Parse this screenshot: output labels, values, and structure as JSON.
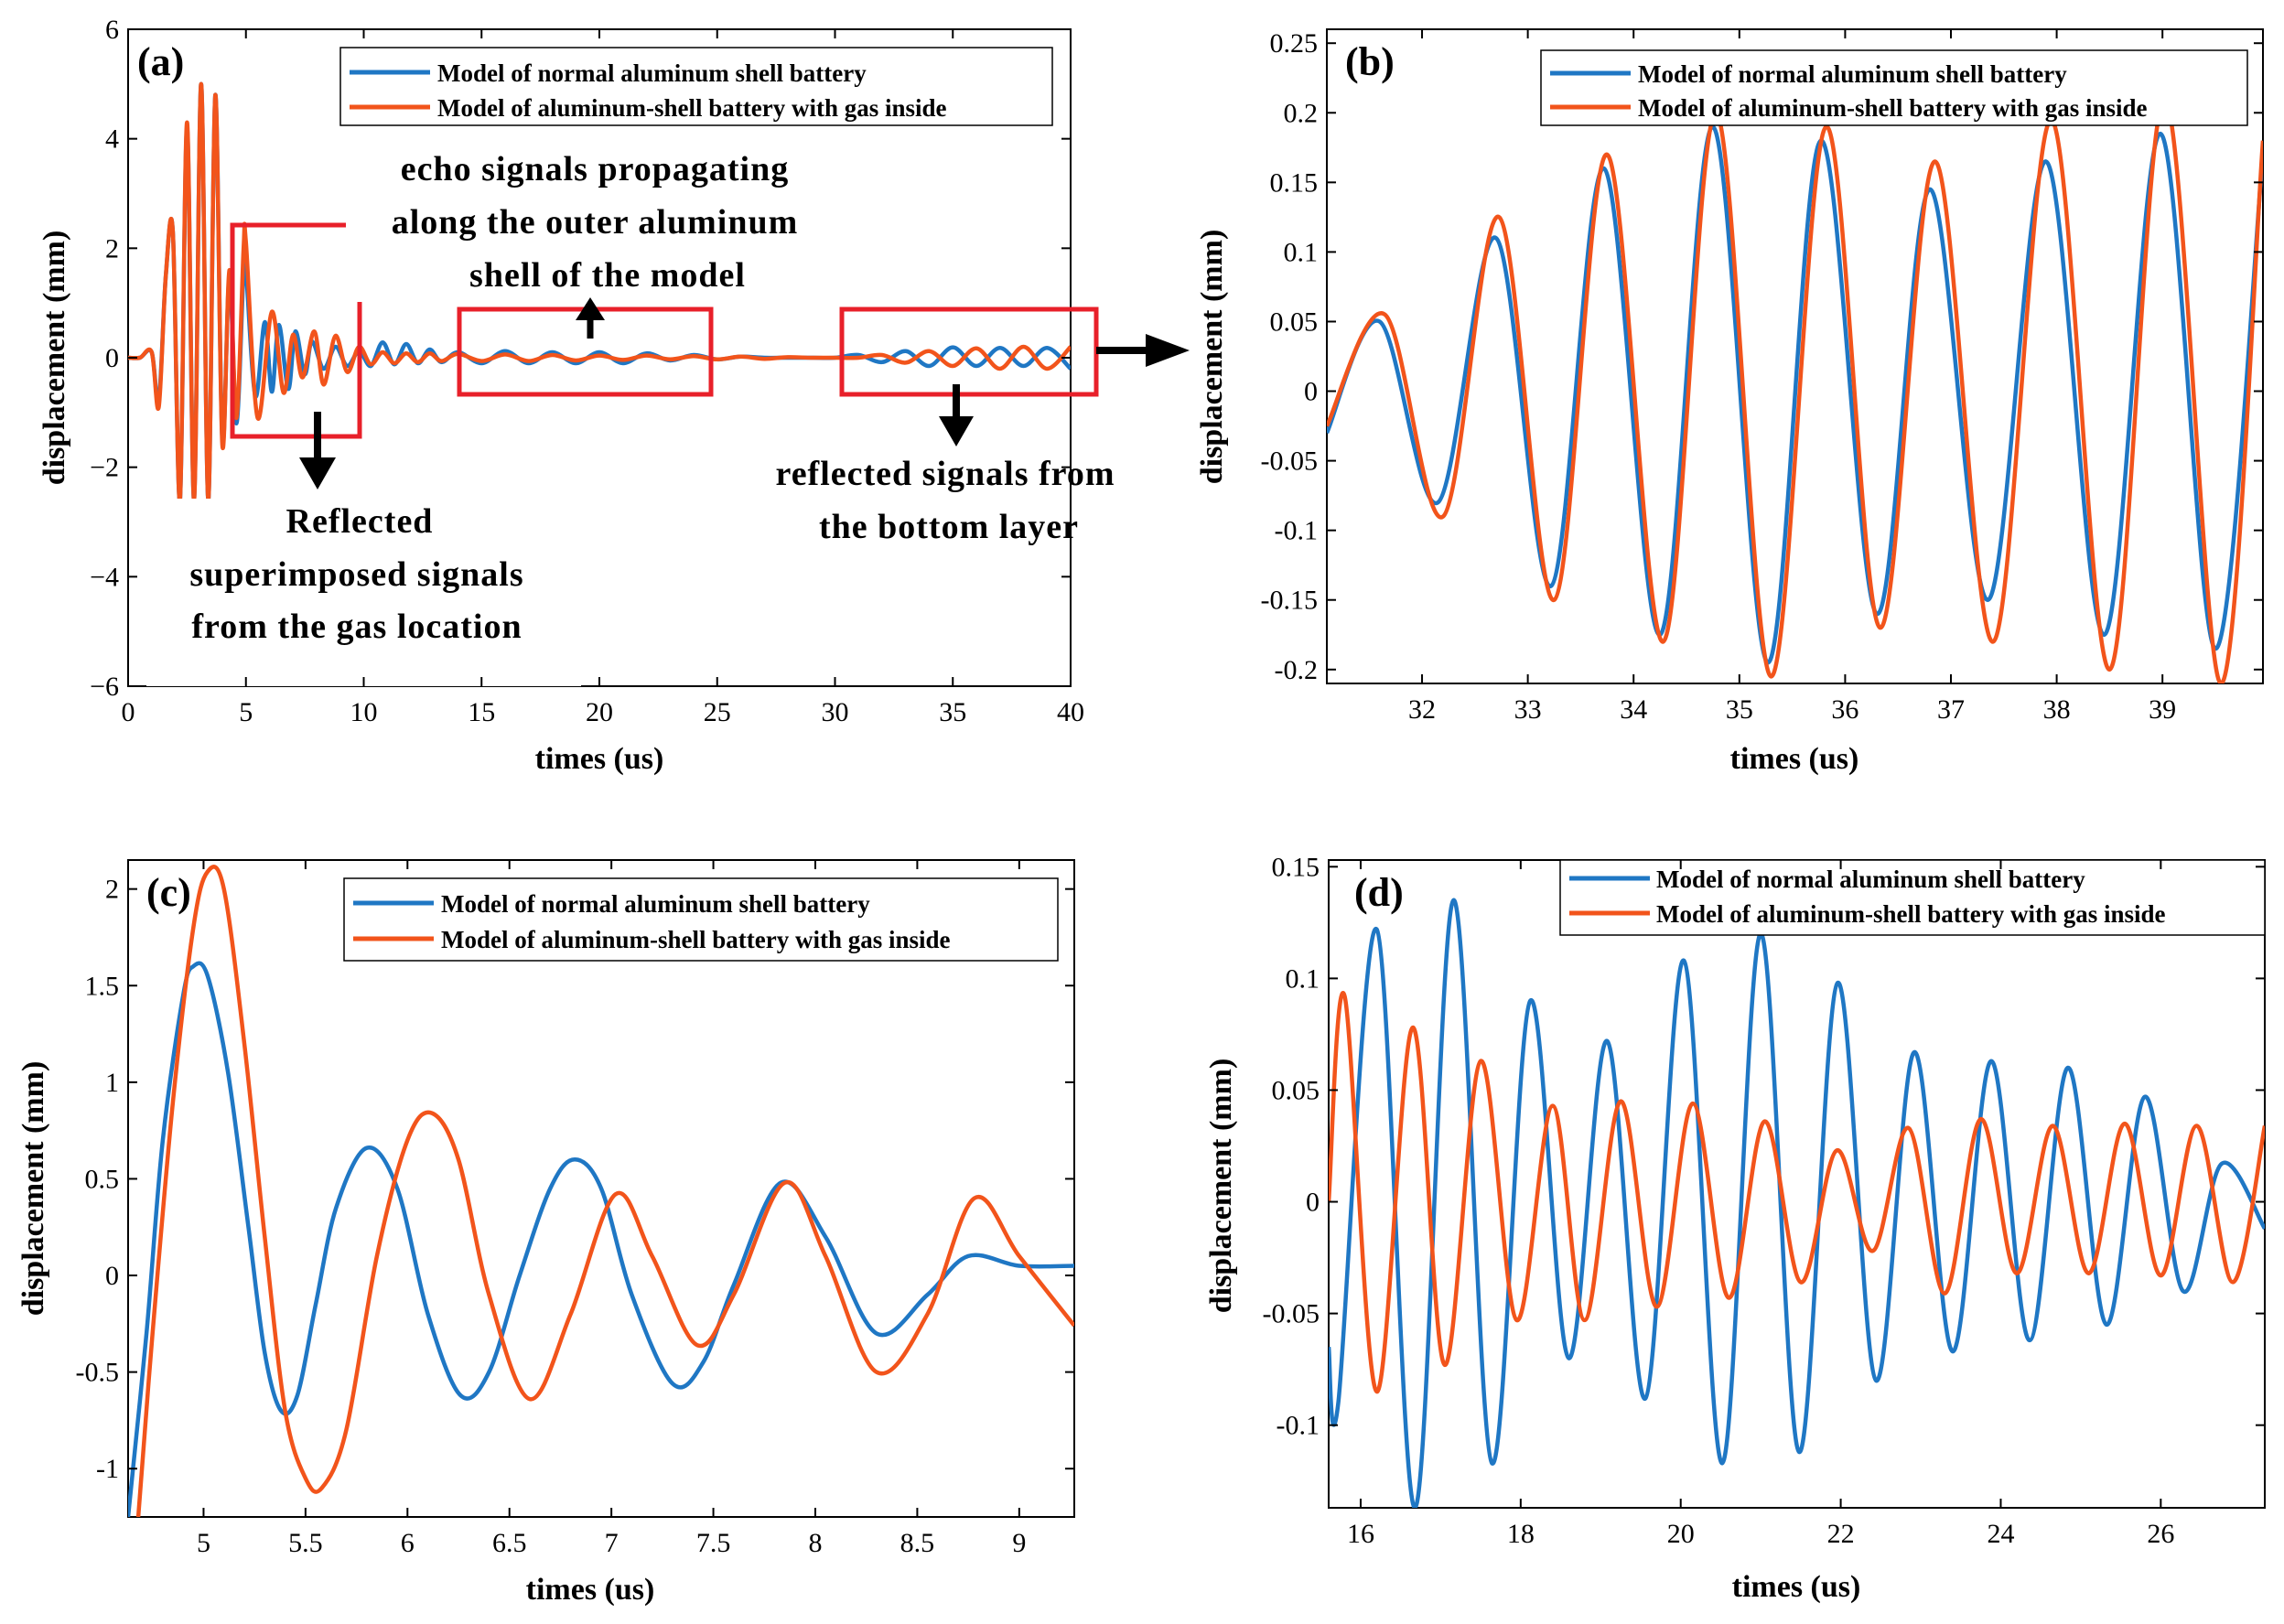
{
  "colors": {
    "normal": "#1f77c4",
    "gas": "#f2541b",
    "highlight": "#e8202a",
    "arrow": "#000000"
  },
  "legend": {
    "normal": "Model of normal aluminum shell battery",
    "gas": "Model of aluminum-shell battery with gas inside"
  },
  "annotations": {
    "echo": [
      "echo signals propagating",
      "along the outer aluminum",
      "shell of the model"
    ],
    "reflected_gas": [
      "Reflected",
      "superimposed signals",
      "from the gas location"
    ],
    "reflected_bottom": [
      "reflected signals from",
      "the bottom layer"
    ]
  },
  "chart_data": [
    {
      "id": "a",
      "panel_label": "(a)",
      "type": "line",
      "xlabel": "times (us)",
      "ylabel": "displacement (mm)",
      "xlim": [
        0,
        40
      ],
      "ylim": [
        -6,
        6
      ],
      "xticks": [
        0,
        5,
        10,
        15,
        20,
        25,
        30,
        35,
        40
      ],
      "yticks": [
        -6,
        -4,
        -2,
        0,
        2,
        4,
        6
      ],
      "tick_labels_x": [
        "0",
        "5",
        "10",
        "15",
        "20",
        "25",
        "30",
        "35",
        "40"
      ],
      "tick_labels_y": [
        "−6",
        "−4",
        "−2",
        "0",
        "2",
        "4",
        "6"
      ],
      "series": [
        {
          "name": "Model of normal aluminum shell battery",
          "key": "normal",
          "x": [
            0,
            0.5,
            1,
            1.3,
            1.6,
            1.9,
            2.2,
            2.5,
            2.8,
            3.1,
            3.4,
            3.7,
            4.0,
            4.3,
            4.6,
            4.9,
            5.0,
            5.4,
            5.8,
            6.1,
            6.4,
            6.8,
            7.1,
            7.5,
            7.8,
            8.3,
            8.8,
            9.3,
            9.8,
            10.3,
            10.8,
            11.3,
            11.8,
            12.3,
            12.8,
            13.3,
            14,
            15,
            16,
            17,
            18,
            19,
            20,
            21,
            22,
            23,
            24,
            25,
            26,
            27,
            28,
            29,
            30,
            31,
            32,
            33,
            34,
            35,
            36,
            37,
            38,
            39,
            40
          ],
          "y": [
            0,
            0,
            0.1,
            -0.8,
            1.5,
            2.3,
            -2.6,
            4.2,
            -2.6,
            5.0,
            -2.6,
            4.8,
            -1.5,
            1.5,
            -1.2,
            1.6,
            1.6,
            -0.7,
            0.65,
            -0.62,
            0.6,
            -0.57,
            0.48,
            -0.3,
            0.3,
            -0.2,
            0.2,
            -0.15,
            0.12,
            -0.15,
            0.28,
            -0.12,
            0.25,
            -0.1,
            0.15,
            -0.08,
            0.1,
            -0.1,
            0.12,
            -0.1,
            0.1,
            -0.1,
            0.1,
            -0.1,
            0.08,
            -0.05,
            0.05,
            -0.03,
            0.02,
            0,
            0,
            0,
            0,
            0.05,
            -0.08,
            0.12,
            -0.15,
            0.19,
            -0.15,
            0.18,
            -0.15,
            0.18,
            -0.2
          ]
        },
        {
          "name": "Model of aluminum-shell battery with gas inside",
          "key": "gas",
          "x": [
            0,
            0.5,
            1,
            1.3,
            1.6,
            1.9,
            2.2,
            2.5,
            2.8,
            3.1,
            3.4,
            3.7,
            4.0,
            4.3,
            4.6,
            4.9,
            5.0,
            5.5,
            6.1,
            6.6,
            7.0,
            7.4,
            7.9,
            8.3,
            8.8,
            9.3,
            9.8,
            10.3,
            10.8,
            11.3,
            11.8,
            12.3,
            12.8,
            13.3,
            14,
            15,
            16,
            17,
            18,
            19,
            20,
            21,
            22,
            23,
            24,
            25,
            26,
            27,
            28,
            29,
            30,
            31,
            32,
            33,
            34,
            35,
            36,
            37,
            38,
            39,
            40
          ],
          "y": [
            0,
            0,
            0.1,
            -0.9,
            1.5,
            2.3,
            -2.6,
            4.3,
            -2.6,
            5.0,
            -2.6,
            4.8,
            -1.6,
            1.6,
            -1.1,
            2.0,
            2.1,
            -1.1,
            0.84,
            -0.64,
            0.42,
            -0.36,
            0.48,
            -0.49,
            0.4,
            -0.26,
            0.2,
            -0.12,
            0.1,
            -0.1,
            0.08,
            -0.08,
            0.08,
            -0.06,
            0.07,
            -0.06,
            0.06,
            -0.06,
            0.05,
            -0.05,
            0.04,
            -0.04,
            0.04,
            -0.03,
            0.03,
            -0.03,
            0.02,
            -0.02,
            0.01,
            0,
            0,
            0,
            0.05,
            -0.09,
            0.12,
            -0.15,
            0.17,
            -0.2,
            0.2,
            -0.2,
            0.2
          ]
        }
      ]
    },
    {
      "id": "b",
      "panel_label": "(b)",
      "type": "line",
      "xlabel": "times (us)",
      "ylabel": "displacement (mm)",
      "xlim": [
        31.1,
        39.95
      ],
      "ylim": [
        -0.21,
        0.26
      ],
      "xticks": [
        32,
        33,
        34,
        35,
        36,
        37,
        38,
        39
      ],
      "yticks": [
        -0.2,
        -0.15,
        -0.1,
        -0.05,
        0,
        0.05,
        0.1,
        0.15,
        0.2,
        0.25
      ],
      "tick_labels_x": [
        "32",
        "33",
        "34",
        "35",
        "36",
        "37",
        "38",
        "39"
      ],
      "tick_labels_y": [
        "-0.2",
        "-0.15",
        "-0.1",
        "-0.05",
        "0",
        "0.05",
        "0.1",
        "0.15",
        "0.2",
        "0.25"
      ],
      "series": [
        {
          "name": "Model of normal aluminum shell battery",
          "key": "normal",
          "x": [
            31.1,
            31.6,
            32.15,
            32.7,
            33.22,
            33.72,
            34.25,
            34.75,
            35.27,
            35.77,
            36.3,
            36.8,
            37.35,
            37.9,
            38.45,
            38.98,
            39.5,
            39.95
          ],
          "y": [
            -0.03,
            0.05,
            -0.08,
            0.11,
            -0.14,
            0.16,
            -0.175,
            0.19,
            -0.195,
            0.18,
            -0.16,
            0.145,
            -0.15,
            0.165,
            -0.175,
            0.185,
            -0.185,
            0.17
          ]
        },
        {
          "name": "Model of aluminum-shell battery with gas inside",
          "key": "gas",
          "x": [
            31.1,
            31.65,
            32.2,
            32.73,
            33.25,
            33.75,
            34.28,
            34.78,
            35.3,
            35.82,
            36.33,
            36.85,
            37.4,
            37.95,
            38.5,
            39.02,
            39.55,
            39.95
          ],
          "y": [
            -0.025,
            0.055,
            -0.09,
            0.125,
            -0.15,
            0.17,
            -0.18,
            0.2,
            -0.205,
            0.19,
            -0.17,
            0.165,
            -0.18,
            0.195,
            -0.2,
            0.21,
            -0.21,
            0.18
          ]
        }
      ]
    },
    {
      "id": "c",
      "panel_label": "(c)",
      "type": "line",
      "xlabel": "times (us)",
      "ylabel": "displacement (mm)",
      "xlim": [
        4.63,
        9.27
      ],
      "ylim": [
        -1.25,
        2.15
      ],
      "xticks": [
        5,
        5.5,
        6,
        6.5,
        7,
        7.5,
        8,
        8.5,
        9
      ],
      "yticks": [
        -1,
        -0.5,
        0,
        0.5,
        1,
        1.5,
        2
      ],
      "tick_labels_x": [
        "5",
        "5.5",
        "6",
        "6.5",
        "7",
        "7.5",
        "8",
        "8.5",
        "9"
      ],
      "tick_labels_y": [
        "-1",
        "-0.5",
        "0",
        "0.5",
        "1",
        "1.5",
        "2"
      ],
      "series": [
        {
          "name": "Model of normal aluminum shell battery",
          "key": "normal",
          "x": [
            4.63,
            4.72,
            4.8,
            4.9,
            4.95,
            5.02,
            5.12,
            5.22,
            5.3,
            5.38,
            5.46,
            5.55,
            5.65,
            5.8,
            5.95,
            6.1,
            6.26,
            6.4,
            6.55,
            6.7,
            6.82,
            6.95,
            7.1,
            7.3,
            7.45,
            7.6,
            7.83,
            8.05,
            8.3,
            8.55,
            8.75,
            9.0,
            9.27
          ],
          "y": [
            -1.25,
            -0.3,
            0.7,
            1.45,
            1.6,
            1.55,
            1.05,
            0.25,
            -0.4,
            -0.7,
            -0.62,
            -0.15,
            0.35,
            0.66,
            0.45,
            -0.2,
            -0.62,
            -0.5,
            0,
            0.45,
            0.6,
            0.45,
            -0.1,
            -0.56,
            -0.45,
            -0.05,
            0.48,
            0.2,
            -0.3,
            -0.1,
            0.1,
            0.05,
            0.05
          ]
        },
        {
          "name": "Model of aluminum-shell battery with gas inside",
          "key": "gas",
          "x": [
            4.68,
            4.75,
            4.85,
            4.95,
            5.02,
            5.1,
            5.2,
            5.3,
            5.4,
            5.5,
            5.58,
            5.7,
            5.85,
            6.0,
            6.12,
            6.25,
            6.4,
            6.6,
            6.8,
            7.02,
            7.2,
            7.42,
            7.6,
            7.85,
            8.05,
            8.3,
            8.55,
            8.78,
            9.0,
            9.27
          ],
          "y": [
            -1.25,
            -0.3,
            0.9,
            1.8,
            2.09,
            2.0,
            1.2,
            0.2,
            -0.7,
            -1.05,
            -1.1,
            -0.8,
            0.1,
            0.7,
            0.84,
            0.6,
            -0.1,
            -0.64,
            -0.2,
            0.42,
            0.1,
            -0.36,
            -0.1,
            0.48,
            0.1,
            -0.5,
            -0.2,
            0.4,
            0.1,
            -0.26
          ]
        }
      ]
    },
    {
      "id": "d",
      "panel_label": "(d)",
      "type": "line",
      "xlabel": "times (us)",
      "ylabel": "displacement (mm)",
      "xlim": [
        15.6,
        27.3
      ],
      "ylim": [
        -0.137,
        0.153
      ],
      "xticks": [
        16,
        18,
        20,
        22,
        24,
        26
      ],
      "yticks": [
        -0.1,
        -0.05,
        0,
        0.05,
        0.1,
        0.15
      ],
      "tick_labels_x": [
        "16",
        "18",
        "20",
        "22",
        "24",
        "26"
      ],
      "tick_labels_y": [
        "-0.1",
        "-0.05",
        "0",
        "0.05",
        "0.1",
        "0.15"
      ],
      "series": [
        {
          "name": "Model of normal aluminum shell battery",
          "key": "normal",
          "x": [
            15.6,
            15.72,
            16.2,
            16.68,
            17.16,
            17.64,
            18.12,
            18.6,
            19.08,
            19.56,
            20.04,
            20.52,
            21.0,
            21.48,
            21.96,
            22.44,
            22.92,
            23.4,
            23.88,
            24.36,
            24.84,
            25.32,
            25.8,
            26.28,
            26.76,
            27.3
          ],
          "y": [
            -0.065,
            -0.09,
            0.122,
            -0.137,
            0.135,
            -0.117,
            0.09,
            -0.07,
            0.072,
            -0.088,
            0.108,
            -0.117,
            0.12,
            -0.112,
            0.098,
            -0.08,
            0.067,
            -0.067,
            0.063,
            -0.062,
            0.06,
            -0.055,
            0.047,
            -0.04,
            0.017,
            -0.012
          ]
        },
        {
          "name": "Model of aluminum-shell battery with gas inside",
          "key": "gas",
          "x": [
            15.6,
            15.8,
            16.2,
            16.65,
            17.05,
            17.5,
            17.95,
            18.4,
            18.8,
            19.25,
            19.7,
            20.15,
            20.6,
            21.05,
            21.5,
            21.95,
            22.4,
            22.85,
            23.3,
            23.75,
            24.2,
            24.65,
            25.1,
            25.55,
            26.0,
            26.45,
            26.9,
            27.3
          ],
          "y": [
            0,
            0.092,
            -0.085,
            0.078,
            -0.073,
            0.063,
            -0.053,
            0.043,
            -0.053,
            0.045,
            -0.047,
            0.044,
            -0.043,
            0.036,
            -0.036,
            0.023,
            -0.022,
            0.033,
            -0.041,
            0.037,
            -0.032,
            0.034,
            -0.032,
            0.035,
            -0.033,
            0.034,
            -0.036,
            0.034
          ]
        }
      ]
    }
  ]
}
